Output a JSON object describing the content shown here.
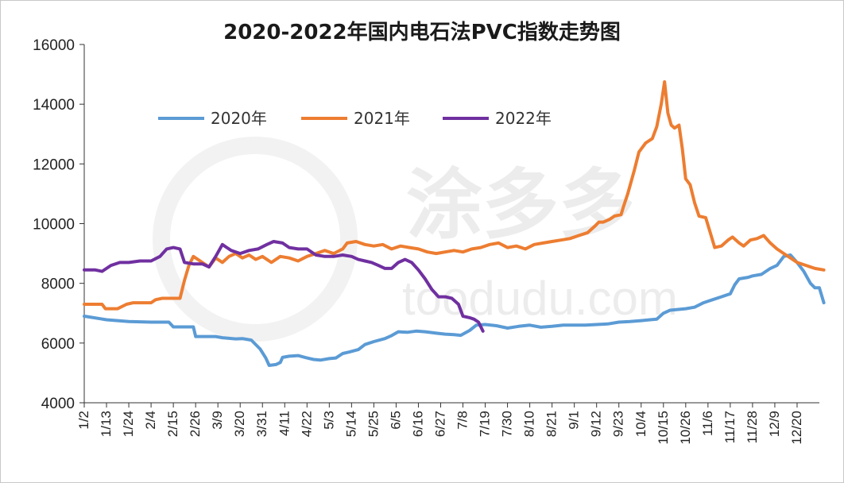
{
  "chart_data": {
    "type": "line",
    "title": "2020-2022年国内电石法PVC指数走势图",
    "xlabel": "",
    "ylabel": "",
    "ylim": [
      4000,
      16000
    ],
    "yticks": [
      4000,
      6000,
      8000,
      10000,
      12000,
      14000,
      16000
    ],
    "categories": [
      "1/2",
      "1/13",
      "1/24",
      "2/4",
      "2/15",
      "2/26",
      "3/9",
      "3/20",
      "3/31",
      "4/11",
      "4/22",
      "5/3",
      "5/14",
      "5/25",
      "6/5",
      "6/16",
      "6/27",
      "7/8",
      "7/19",
      "7/30",
      "8/10",
      "8/21",
      "9/1",
      "9/12",
      "9/23",
      "10/4",
      "10/15",
      "10/26",
      "11/6",
      "11/17",
      "11/28",
      "12/9",
      "12/20"
    ],
    "grid": false,
    "legend_position": "top-left",
    "watermark": "toodudu.com",
    "series": [
      {
        "name": "2020年",
        "color": "#5b9bd5",
        "points": [
          [
            0,
            6900
          ],
          [
            1,
            6780
          ],
          [
            2,
            6720
          ],
          [
            3,
            6700
          ],
          [
            3.8,
            6700
          ],
          [
            4,
            6540
          ],
          [
            4.9,
            6540
          ],
          [
            5,
            6220
          ],
          [
            5.9,
            6220
          ],
          [
            6.2,
            6180
          ],
          [
            6.8,
            6140
          ],
          [
            7.1,
            6150
          ],
          [
            7.5,
            6100
          ],
          [
            7.9,
            5800
          ],
          [
            8.15,
            5500
          ],
          [
            8.3,
            5250
          ],
          [
            8.6,
            5280
          ],
          [
            8.8,
            5350
          ],
          [
            8.9,
            5520
          ],
          [
            9.2,
            5560
          ],
          [
            9.6,
            5580
          ],
          [
            10,
            5500
          ],
          [
            10.3,
            5450
          ],
          [
            10.6,
            5430
          ],
          [
            11,
            5480
          ],
          [
            11.3,
            5500
          ],
          [
            11.6,
            5650
          ],
          [
            11.9,
            5700
          ],
          [
            12.3,
            5780
          ],
          [
            12.6,
            5950
          ],
          [
            13,
            6050
          ],
          [
            13.5,
            6150
          ],
          [
            13.8,
            6250
          ],
          [
            14.1,
            6380
          ],
          [
            14.5,
            6360
          ],
          [
            14.9,
            6400
          ],
          [
            15.3,
            6380
          ],
          [
            15.8,
            6330
          ],
          [
            16.2,
            6300
          ],
          [
            16.6,
            6280
          ],
          [
            16.9,
            6260
          ],
          [
            17.3,
            6420
          ],
          [
            17.6,
            6600
          ],
          [
            18,
            6620
          ],
          [
            18.5,
            6580
          ],
          [
            19,
            6500
          ],
          [
            19.5,
            6560
          ],
          [
            20,
            6600
          ],
          [
            20.5,
            6530
          ],
          [
            21,
            6560
          ],
          [
            21.5,
            6600
          ],
          [
            22,
            6600
          ],
          [
            22.5,
            6600
          ],
          [
            23,
            6620
          ],
          [
            23.5,
            6640
          ],
          [
            24,
            6700
          ],
          [
            24.5,
            6720
          ],
          [
            25,
            6750
          ],
          [
            25.4,
            6780
          ],
          [
            25.7,
            6800
          ],
          [
            26,
            7000
          ],
          [
            26.3,
            7100
          ],
          [
            27,
            7150
          ],
          [
            27.4,
            7200
          ],
          [
            27.8,
            7350
          ],
          [
            28.2,
            7450
          ],
          [
            28.6,
            7550
          ],
          [
            29,
            7650
          ],
          [
            29.2,
            7950
          ],
          [
            29.4,
            8150
          ],
          [
            29.8,
            8200
          ],
          [
            30,
            8250
          ],
          [
            30.4,
            8300
          ],
          [
            30.8,
            8500
          ],
          [
            31.1,
            8600
          ],
          [
            31.4,
            8900
          ],
          [
            31.7,
            8950
          ],
          [
            32,
            8700
          ],
          [
            32.3,
            8400
          ],
          [
            32.6,
            8000
          ],
          [
            32.8,
            7850
          ],
          [
            33.0,
            7850
          ],
          [
            33.2,
            7350
          ]
        ]
      },
      {
        "name": "2021年",
        "color": "#ed7d31",
        "points": [
          [
            0,
            7300
          ],
          [
            0.8,
            7300
          ],
          [
            0.95,
            7150
          ],
          [
            1.5,
            7150
          ],
          [
            1.9,
            7300
          ],
          [
            2.2,
            7350
          ],
          [
            3,
            7350
          ],
          [
            3.2,
            7450
          ],
          [
            3.5,
            7500
          ],
          [
            4.3,
            7500
          ],
          [
            4.5,
            8100
          ],
          [
            4.7,
            8600
          ],
          [
            4.9,
            8900
          ],
          [
            5.3,
            8700
          ],
          [
            5.6,
            8550
          ],
          [
            5.9,
            8850
          ],
          [
            6.2,
            8700
          ],
          [
            6.5,
            8900
          ],
          [
            6.8,
            9000
          ],
          [
            7.1,
            8850
          ],
          [
            7.4,
            8950
          ],
          [
            7.7,
            8800
          ],
          [
            8,
            8900
          ],
          [
            8.4,
            8700
          ],
          [
            8.8,
            8900
          ],
          [
            9.2,
            8850
          ],
          [
            9.6,
            8750
          ],
          [
            10,
            8900
          ],
          [
            10.4,
            9000
          ],
          [
            10.8,
            9100
          ],
          [
            11.2,
            9000
          ],
          [
            11.6,
            9150
          ],
          [
            11.8,
            9350
          ],
          [
            12.2,
            9400
          ],
          [
            12.6,
            9300
          ],
          [
            13,
            9250
          ],
          [
            13.4,
            9300
          ],
          [
            13.8,
            9150
          ],
          [
            14.2,
            9250
          ],
          [
            14.6,
            9200
          ],
          [
            15,
            9150
          ],
          [
            15.4,
            9050
          ],
          [
            15.8,
            9000
          ],
          [
            16.2,
            9050
          ],
          [
            16.6,
            9100
          ],
          [
            17,
            9050
          ],
          [
            17.4,
            9150
          ],
          [
            17.8,
            9200
          ],
          [
            18.2,
            9300
          ],
          [
            18.6,
            9350
          ],
          [
            19,
            9200
          ],
          [
            19.4,
            9250
          ],
          [
            19.8,
            9150
          ],
          [
            20.2,
            9300
          ],
          [
            20.6,
            9350
          ],
          [
            21,
            9400
          ],
          [
            21.4,
            9450
          ],
          [
            21.8,
            9500
          ],
          [
            22.2,
            9600
          ],
          [
            22.6,
            9700
          ],
          [
            22.9,
            9900
          ],
          [
            23.1,
            10050
          ],
          [
            23.3,
            10050
          ],
          [
            23.6,
            10150
          ],
          [
            23.8,
            10250
          ],
          [
            24.1,
            10300
          ],
          [
            24.2,
            10550
          ],
          [
            24.4,
            11000
          ],
          [
            24.7,
            11800
          ],
          [
            24.9,
            12400
          ],
          [
            25.2,
            12700
          ],
          [
            25.5,
            12850
          ],
          [
            25.7,
            13250
          ],
          [
            25.9,
            14000
          ],
          [
            26.05,
            14750
          ],
          [
            26.2,
            13700
          ],
          [
            26.35,
            13300
          ],
          [
            26.5,
            13200
          ],
          [
            26.7,
            13300
          ],
          [
            26.85,
            12500
          ],
          [
            27.0,
            11500
          ],
          [
            27.2,
            11300
          ],
          [
            27.4,
            10700
          ],
          [
            27.6,
            10250
          ],
          [
            27.9,
            10200
          ],
          [
            28.1,
            9700
          ],
          [
            28.3,
            9200
          ],
          [
            28.6,
            9250
          ],
          [
            28.9,
            9450
          ],
          [
            29.1,
            9550
          ],
          [
            29.4,
            9350
          ],
          [
            29.6,
            9250
          ],
          [
            29.9,
            9450
          ],
          [
            30.2,
            9500
          ],
          [
            30.5,
            9600
          ],
          [
            30.8,
            9350
          ],
          [
            31.1,
            9150
          ],
          [
            31.4,
            9000
          ],
          [
            31.7,
            8850
          ],
          [
            32,
            8700
          ],
          [
            32.4,
            8600
          ],
          [
            32.8,
            8500
          ],
          [
            33.2,
            8450
          ]
        ]
      },
      {
        "name": "2022年",
        "color": "#7030a0",
        "points": [
          [
            0,
            8450
          ],
          [
            0.5,
            8450
          ],
          [
            0.8,
            8400
          ],
          [
            1.2,
            8600
          ],
          [
            1.6,
            8700
          ],
          [
            2,
            8700
          ],
          [
            2.5,
            8750
          ],
          [
            3,
            8750
          ],
          [
            3.4,
            8900
          ],
          [
            3.7,
            9150
          ],
          [
            4,
            9200
          ],
          [
            4.3,
            9150
          ],
          [
            4.5,
            8700
          ],
          [
            4.9,
            8650
          ],
          [
            5.3,
            8650
          ],
          [
            5.6,
            8550
          ],
          [
            5.9,
            8900
          ],
          [
            6.2,
            9300
          ],
          [
            6.4,
            9200
          ],
          [
            6.6,
            9100
          ],
          [
            7,
            9000
          ],
          [
            7.4,
            9100
          ],
          [
            7.8,
            9150
          ],
          [
            8.2,
            9300
          ],
          [
            8.5,
            9400
          ],
          [
            8.9,
            9350
          ],
          [
            9.2,
            9200
          ],
          [
            9.6,
            9150
          ],
          [
            10,
            9150
          ],
          [
            10.4,
            8950
          ],
          [
            10.8,
            8900
          ],
          [
            11.2,
            8900
          ],
          [
            11.6,
            8950
          ],
          [
            12,
            8900
          ],
          [
            12.3,
            8800
          ],
          [
            12.6,
            8750
          ],
          [
            12.9,
            8700
          ],
          [
            13.2,
            8600
          ],
          [
            13.5,
            8500
          ],
          [
            13.8,
            8500
          ],
          [
            14.1,
            8700
          ],
          [
            14.4,
            8800
          ],
          [
            14.7,
            8700
          ],
          [
            15,
            8450
          ],
          [
            15.3,
            8150
          ],
          [
            15.6,
            7800
          ],
          [
            15.9,
            7550
          ],
          [
            16.2,
            7550
          ],
          [
            16.5,
            7500
          ],
          [
            16.8,
            7300
          ],
          [
            17,
            6900
          ],
          [
            17.3,
            6850
          ],
          [
            17.5,
            6800
          ],
          [
            17.7,
            6700
          ],
          [
            17.9,
            6400
          ]
        ]
      }
    ]
  }
}
